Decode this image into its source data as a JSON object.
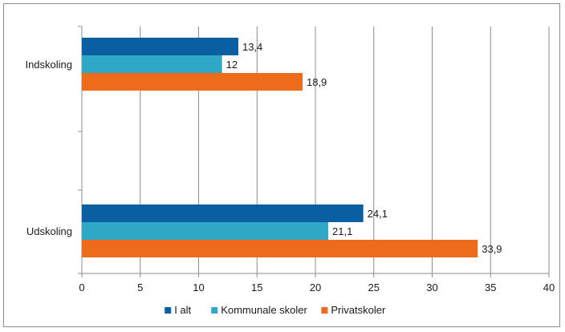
{
  "chart_data": {
    "type": "bar",
    "orientation": "horizontal",
    "categories": [
      "Indskoling",
      "Udskoling"
    ],
    "series": [
      {
        "name": "I alt",
        "values": [
          13.4,
          24.1
        ],
        "labels": [
          "13,4",
          "24,1"
        ],
        "color": "#0a5fa3"
      },
      {
        "name": "Kommunale skoler",
        "values": [
          12,
          21.1
        ],
        "labels": [
          "12",
          "21,1"
        ],
        "color": "#2fa7c7"
      },
      {
        "name": "Privatskoler",
        "values": [
          18.9,
          33.9
        ],
        "labels": [
          "18,9",
          "33,9"
        ],
        "color": "#ee6b1c"
      }
    ],
    "xlim": [
      0,
      40
    ],
    "xticks": [
      0,
      5,
      10,
      15,
      20,
      25,
      30,
      35,
      40
    ],
    "grid": true,
    "legend_position": "bottom",
    "title": "",
    "xlabel": "",
    "ylabel": ""
  }
}
